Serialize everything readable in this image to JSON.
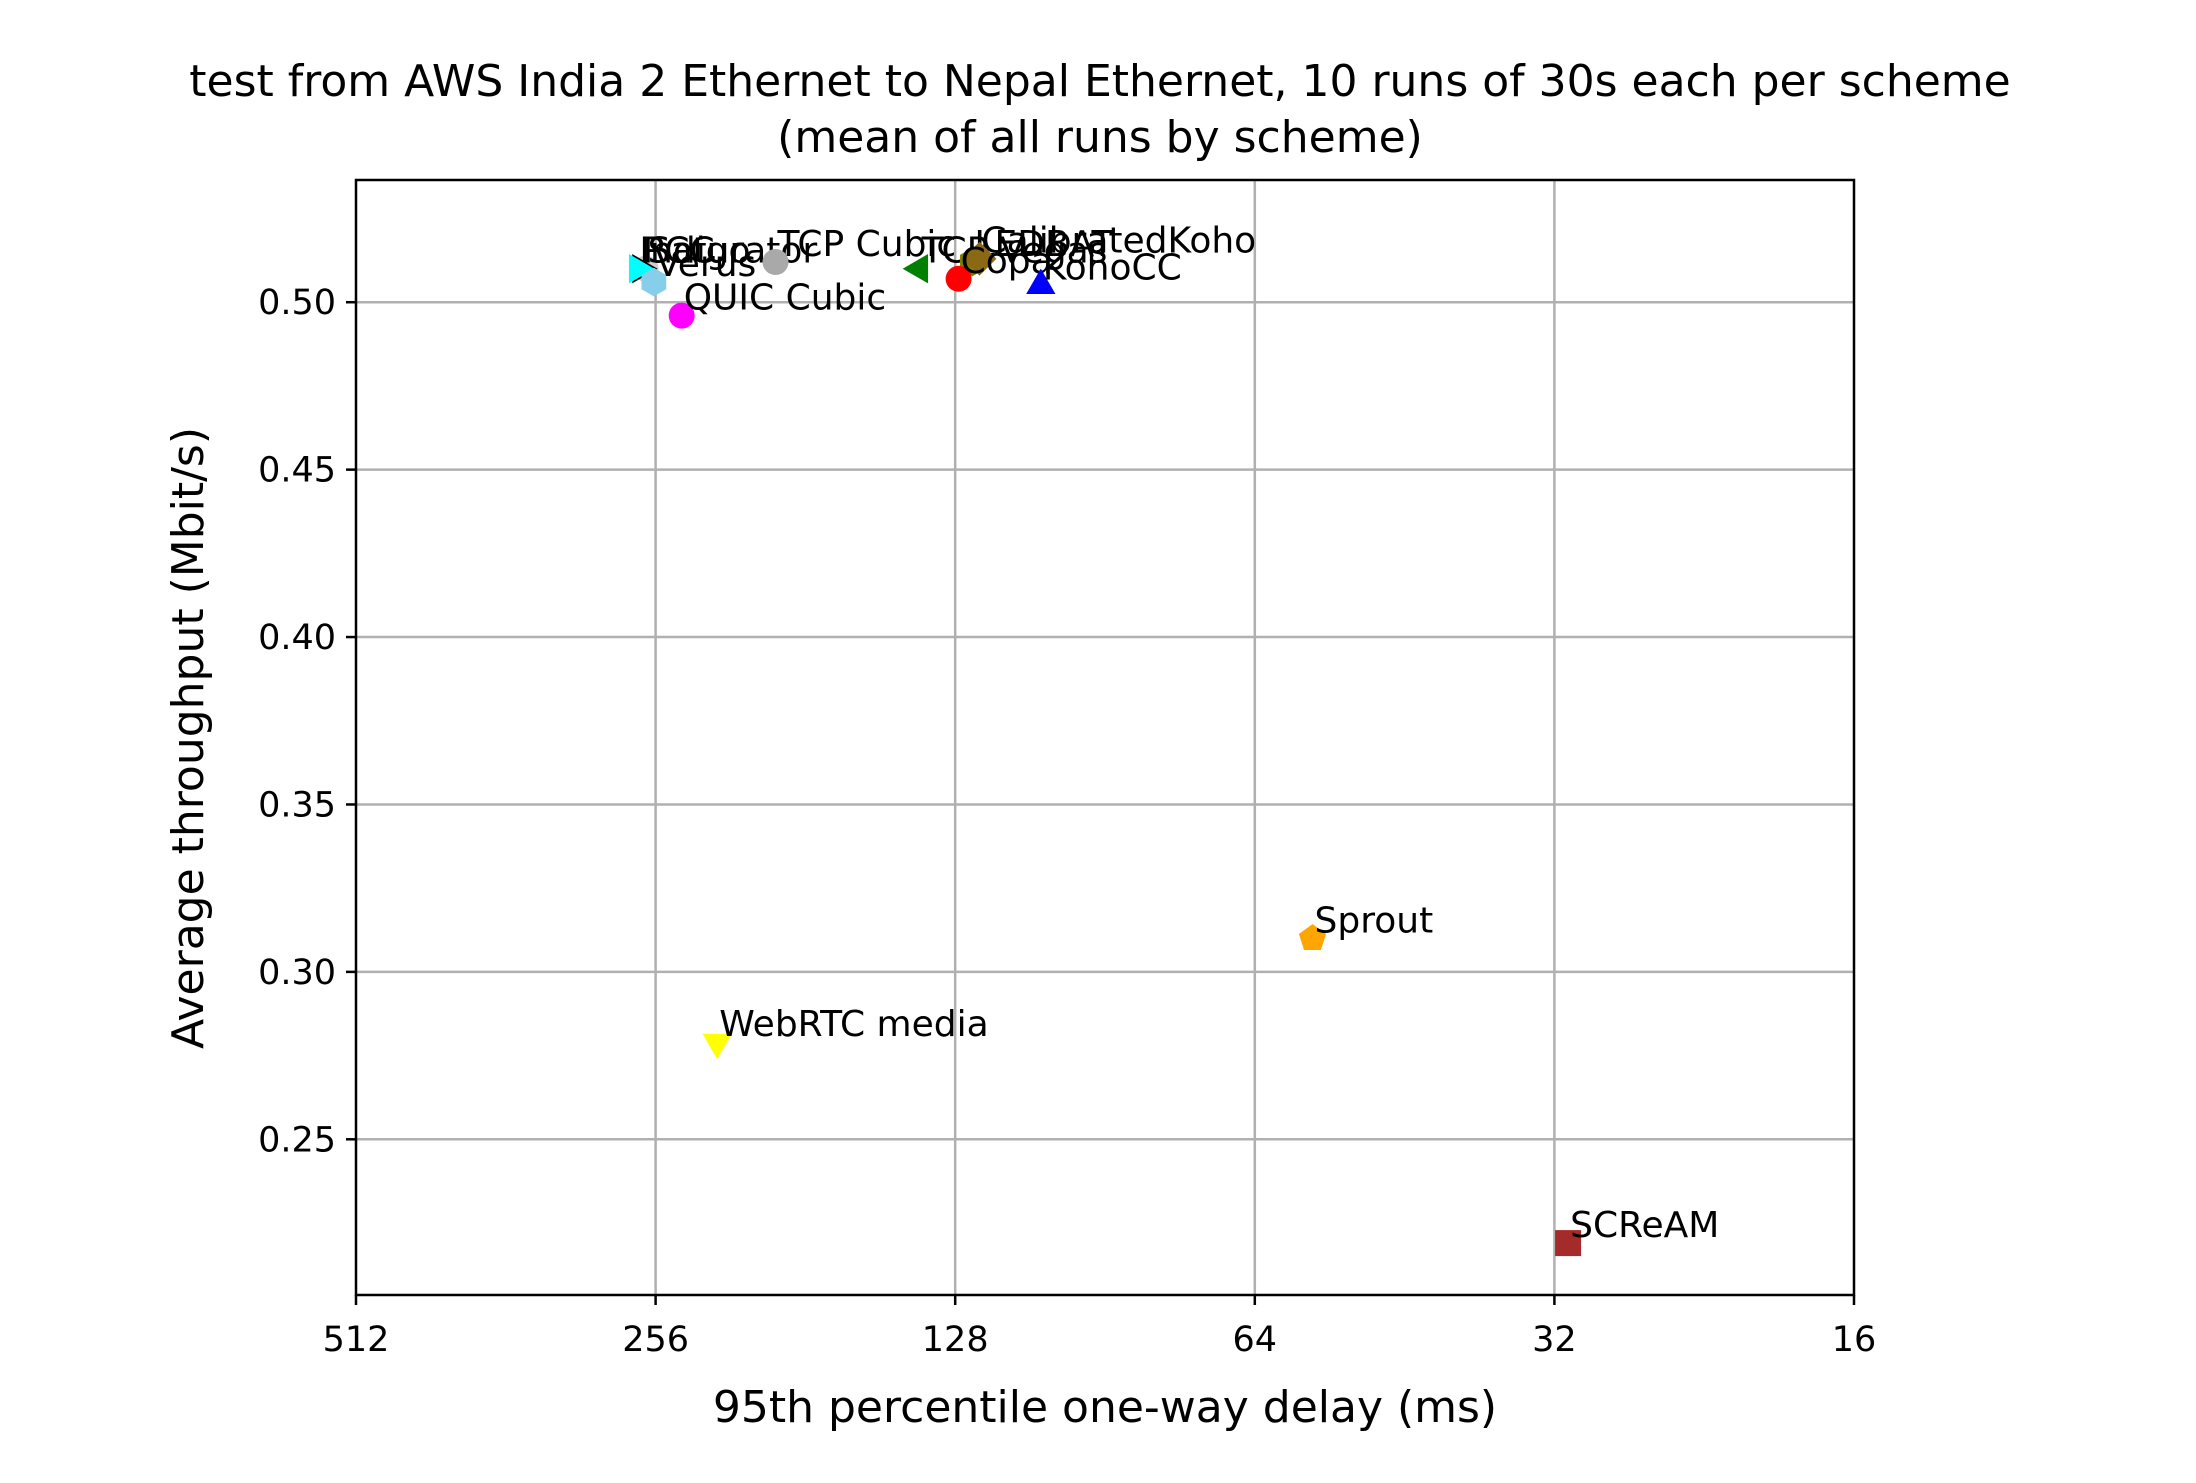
{
  "chart_data": {
    "type": "scatter",
    "title": "test from AWS India 2 Ethernet to Nepal Ethernet, 10 runs of 30s each per scheme",
    "subtitle": "(mean of all runs by scheme)",
    "xlabel": "95th percentile one-way delay (ms)",
    "ylabel": "Average throughput (Mbit/s)",
    "x_scale": "log2",
    "x_inverted": true,
    "xlim": [
      512,
      16
    ],
    "ylim": [
      0.2035,
      0.5365
    ],
    "grid": true,
    "legend": "none",
    "x_ticks": [
      512,
      256,
      128,
      64,
      32,
      16
    ],
    "x_tick_labels": [
      "512",
      "256",
      "128",
      "64",
      "32",
      "16"
    ],
    "y_ticks": [
      0.25,
      0.3,
      0.35,
      0.4,
      0.45,
      0.5
    ],
    "y_tick_labels": [
      "0.25",
      "0.30",
      "0.35",
      "0.40",
      "0.45",
      "0.50"
    ],
    "points": [
      {
        "label": "Saturator",
        "x": 262,
        "y": 0.51,
        "marker": "circle",
        "color": "#cccccc"
      },
      {
        "label": "TCP Cubic",
        "x": 194,
        "y": 0.512,
        "marker": "circle",
        "color": "#a9a9a9"
      },
      {
        "label": "PCC",
        "x": 265,
        "y": 0.51,
        "marker": "triangle-right",
        "color": "#000000"
      },
      {
        "label": "Indigo",
        "x": 267,
        "y": 0.51,
        "marker": "triangle-right",
        "color": "#00ffff"
      },
      {
        "label": "Verus",
        "x": 257,
        "y": 0.506,
        "marker": "hexagon",
        "color": "#87ceeb"
      },
      {
        "label": "QUIC Cubic",
        "x": 241,
        "y": 0.496,
        "marker": "circle",
        "color": "#ff00ff"
      },
      {
        "label": "TCP Vegas",
        "x": 139,
        "y": 0.51,
        "marker": "triangle-left",
        "color": "#008000"
      },
      {
        "label": "LEDBAT",
        "x": 123,
        "y": 0.512,
        "marker": "hexagon",
        "color": "#808000"
      },
      {
        "label": "CalibratedKoho",
        "x": 121,
        "y": 0.513,
        "marker": "diamond",
        "color": "#8b6914"
      },
      {
        "label": "Copa",
        "x": 127,
        "y": 0.507,
        "marker": "circle",
        "color": "#ff0000"
      },
      {
        "label": "KohoCC",
        "x": 105,
        "y": 0.505,
        "marker": "triangle-up",
        "color": "#0000ff"
      },
      {
        "label": "Sprout",
        "x": 56,
        "y": 0.31,
        "marker": "pentagon",
        "color": "#ffa500"
      },
      {
        "label": "WebRTC media",
        "x": 222,
        "y": 0.279,
        "marker": "triangle-down",
        "color": "#ffff00"
      },
      {
        "label": "SCReAM",
        "x": 31,
        "y": 0.219,
        "marker": "square",
        "color": "#a52a2a"
      }
    ]
  }
}
